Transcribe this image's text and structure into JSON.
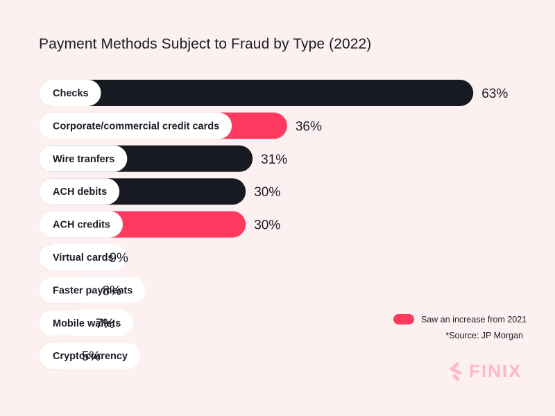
{
  "title": "Payment Methods Subject to Fraud by Type (2022)",
  "legend": {
    "label": "Saw an increase from 2021",
    "color": "#ff3a61"
  },
  "source": "*Source: JP Morgan",
  "brand": {
    "name": "FINIX",
    "icon": "finix-logo-icon"
  },
  "colors": {
    "dark": "#181a22",
    "accent": "#ff3a61",
    "pill": "#ffffff",
    "background": "#fdf0f1"
  },
  "chart_data": {
    "type": "bar",
    "orientation": "horizontal",
    "title": "Payment Methods Subject to Fraud by Type (2022)",
    "xlabel": "",
    "ylabel": "",
    "xlim": [
      0,
      63
    ],
    "grid": false,
    "legend_position": "bottom-right",
    "categories": [
      "Checks",
      "Corporate/commercial credit cards",
      "Wire tranfers",
      "ACH debits",
      "ACH credits",
      "Virtual cards",
      "Faster payments",
      "Mobile wallets",
      "Cryptocurrency"
    ],
    "values": [
      63,
      36,
      31,
      30,
      30,
      9,
      8,
      7,
      5
    ],
    "value_labels": [
      "63%",
      "36%",
      "31%",
      "30%",
      "30%",
      "9%",
      "8%",
      "7%",
      "5%"
    ],
    "increased_from_2021": [
      false,
      true,
      false,
      false,
      true,
      false,
      true,
      true,
      true
    ]
  }
}
